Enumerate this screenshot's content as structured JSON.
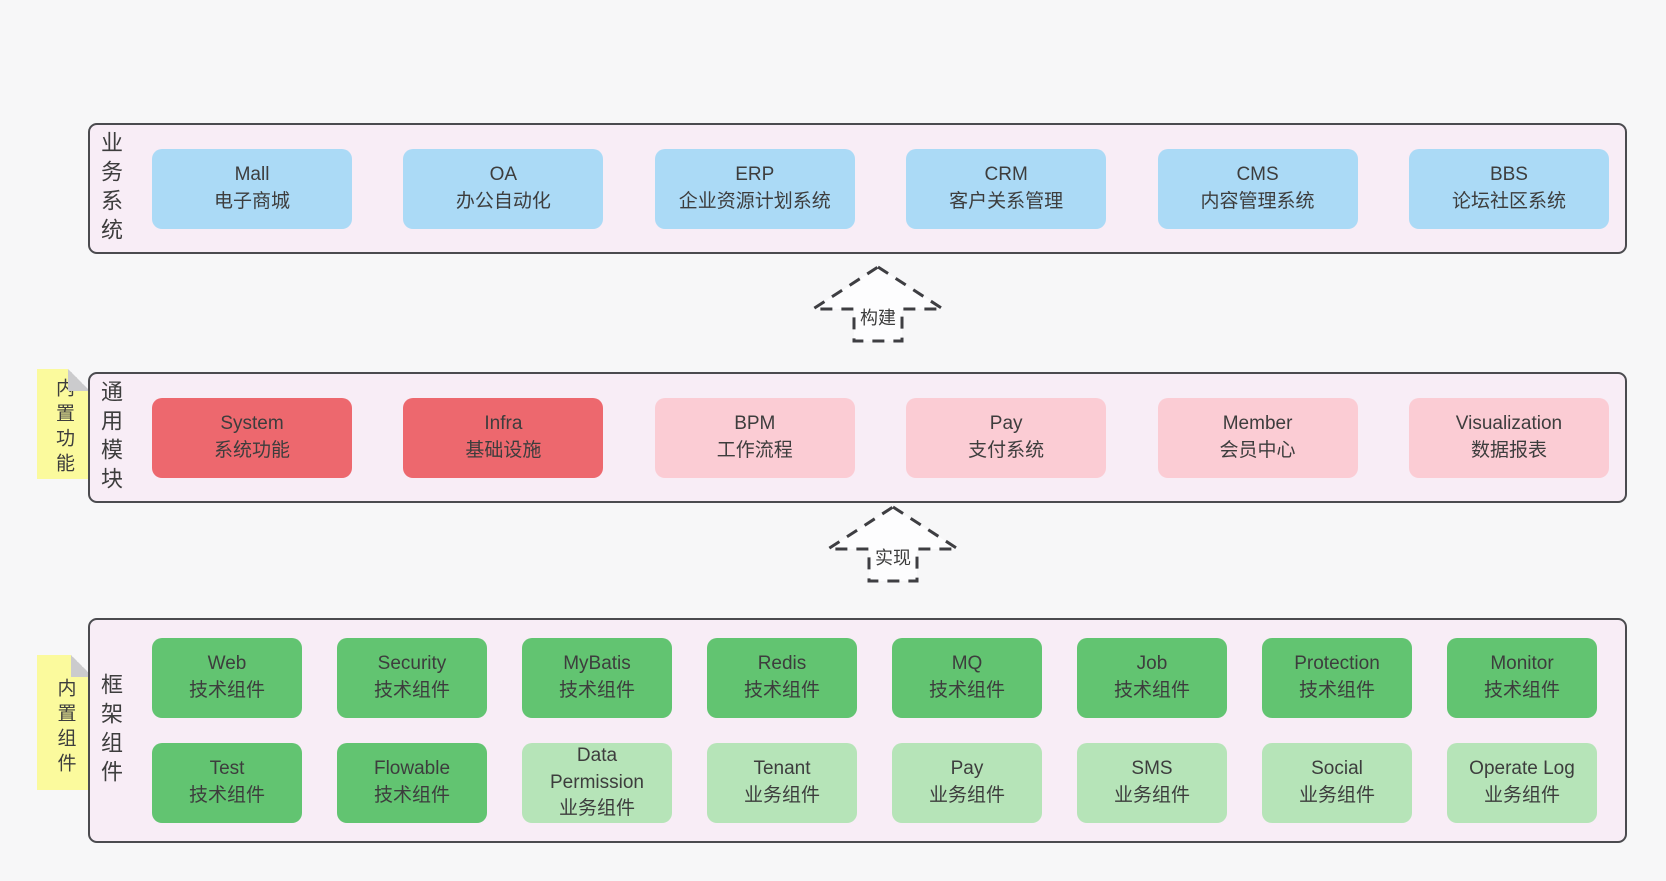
{
  "colors": {
    "page_bg": "#f7f7f8",
    "panel_bg": "#f8edf6",
    "panel_border": "#4b4b4f",
    "blue": "#abdaf6",
    "red": "#ed686e",
    "pink": "#fbccd4",
    "green": "#62c471",
    "light_green": "#b6e4b8",
    "yellow": "#fbfa9d",
    "fold": "#cbcbcd",
    "text": "#3d3d3d",
    "arrow_stroke": "#3e3e42",
    "arrow_fill": "#fdfdfe"
  },
  "arrows": [
    {
      "label": "构建"
    },
    {
      "label": "实现"
    }
  ],
  "layers": [
    {
      "name": "business-systems",
      "side_label": "业务系统",
      "sticky": null,
      "rows": [
        [
          {
            "title": "Mall",
            "subtitle": "电子商城",
            "variant": "blue"
          },
          {
            "title": "OA",
            "subtitle": "办公自动化",
            "variant": "blue"
          },
          {
            "title": "ERP",
            "subtitle": "企业资源计划系统",
            "variant": "blue"
          },
          {
            "title": "CRM",
            "subtitle": "客户关系管理",
            "variant": "blue"
          },
          {
            "title": "CMS",
            "subtitle": "内容管理系统",
            "variant": "blue"
          },
          {
            "title": "BBS",
            "subtitle": "论坛社区系统",
            "variant": "blue"
          }
        ]
      ]
    },
    {
      "name": "common-modules",
      "side_label": "通用模块",
      "sticky": "内置功能",
      "rows": [
        [
          {
            "title": "System",
            "subtitle": "系统功能",
            "variant": "red"
          },
          {
            "title": "Infra",
            "subtitle": "基础设施",
            "variant": "red"
          },
          {
            "title": "BPM",
            "subtitle": "工作流程",
            "variant": "pink"
          },
          {
            "title": "Pay",
            "subtitle": "支付系统",
            "variant": "pink"
          },
          {
            "title": "Member",
            "subtitle": "会员中心",
            "variant": "pink"
          },
          {
            "title": "Visualization",
            "subtitle": "数据报表",
            "variant": "pink"
          }
        ]
      ]
    },
    {
      "name": "framework-components",
      "side_label": "框架组件",
      "sticky": "内置组件",
      "rows": [
        [
          {
            "title": "Web",
            "subtitle": "技术组件",
            "variant": "green"
          },
          {
            "title": "Security",
            "subtitle": "技术组件",
            "variant": "green"
          },
          {
            "title": "MyBatis",
            "subtitle": "技术组件",
            "variant": "green"
          },
          {
            "title": "Redis",
            "subtitle": "技术组件",
            "variant": "green"
          },
          {
            "title": "MQ",
            "subtitle": "技术组件",
            "variant": "green"
          },
          {
            "title": "Job",
            "subtitle": "技术组件",
            "variant": "green"
          },
          {
            "title": "Protection",
            "subtitle": "技术组件",
            "variant": "green"
          },
          {
            "title": "Monitor",
            "subtitle": "技术组件",
            "variant": "green"
          }
        ],
        [
          {
            "title": "Test",
            "subtitle": "技术组件",
            "variant": "green"
          },
          {
            "title": "Flowable",
            "subtitle": "技术组件",
            "variant": "green"
          },
          {
            "title": "Data Permission",
            "subtitle": "业务组件",
            "variant": "lightgreen"
          },
          {
            "title": "Tenant",
            "subtitle": "业务组件",
            "variant": "lightgreen"
          },
          {
            "title": "Pay",
            "subtitle": "业务组件",
            "variant": "lightgreen"
          },
          {
            "title": "SMS",
            "subtitle": "业务组件",
            "variant": "lightgreen"
          },
          {
            "title": "Social",
            "subtitle": "业务组件",
            "variant": "lightgreen"
          },
          {
            "title": "Operate Log",
            "subtitle": "业务组件",
            "variant": "lightgreen"
          }
        ]
      ]
    }
  ]
}
